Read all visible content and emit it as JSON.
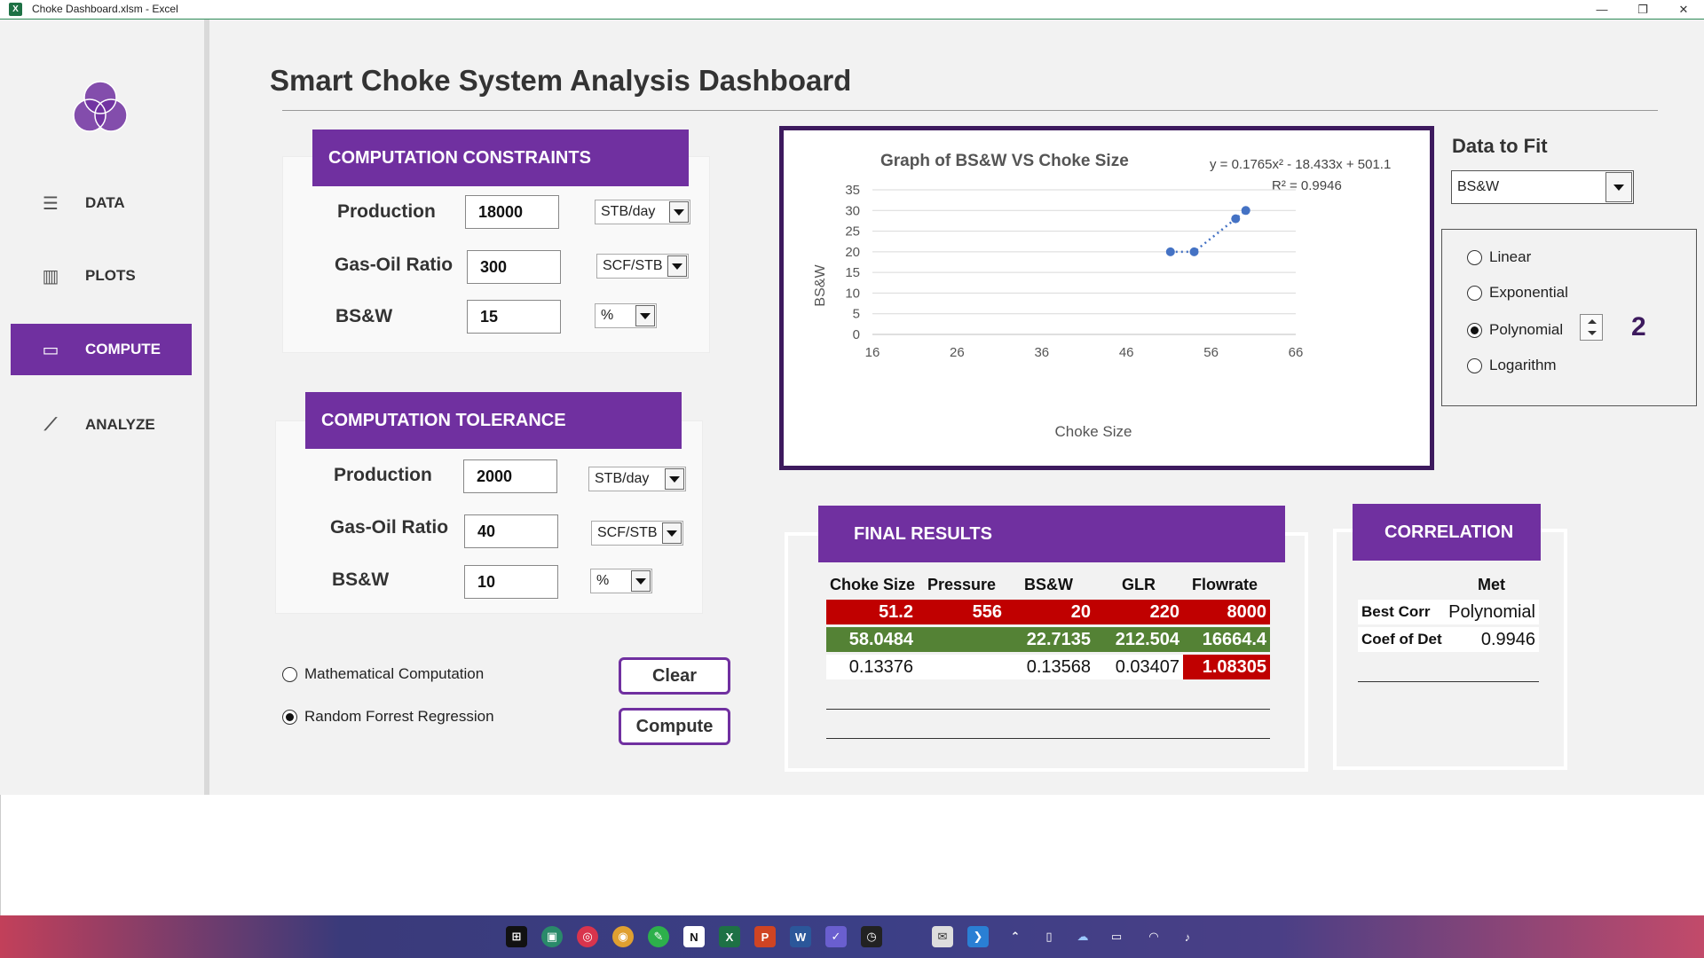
{
  "window": {
    "title": "Choke Dashboard.xlsm - Excel",
    "minimize": "—",
    "restore": "❐",
    "close": "✕"
  },
  "sidebar": {
    "items": [
      {
        "label": "DATA",
        "icon": "data-table-icon",
        "glyph": "☰"
      },
      {
        "label": "PLOTS",
        "icon": "bar-chart-icon",
        "glyph": "▥"
      },
      {
        "label": "COMPUTE",
        "icon": "compute-window-icon",
        "glyph": "▭"
      },
      {
        "label": "ANALYZE",
        "icon": "analyze-chart-icon",
        "glyph": "⟋"
      }
    ],
    "active_color": "#7030a0"
  },
  "page": {
    "title": "Smart Choke System Analysis Dashboard"
  },
  "constraints": {
    "header": "COMPUTATION CONSTRAINTS",
    "fields": [
      {
        "label": "Production",
        "value": "18000",
        "unit": "STB/day"
      },
      {
        "label": "Gas-Oil Ratio",
        "value": "300",
        "unit": "SCF/STB"
      },
      {
        "label": "BS&W",
        "value": "15",
        "unit": "%"
      }
    ]
  },
  "tolerance": {
    "header": "COMPUTATION TOLERANCE",
    "fields": [
      {
        "label": "Production",
        "value": "2000",
        "unit": "STB/day"
      },
      {
        "label": "Gas-Oil Ratio",
        "value": "40",
        "unit": "SCF/STB"
      },
      {
        "label": "BS&W",
        "value": "10",
        "unit": "%"
      }
    ]
  },
  "method": {
    "options": [
      {
        "label": "Mathematical Computation",
        "selected": false
      },
      {
        "label": "Random Forrest Regression",
        "selected": true
      }
    ]
  },
  "buttons": {
    "clear": "Clear",
    "compute": "Compute"
  },
  "chart_data": {
    "type": "scatter",
    "title": "Graph of BS&W VS  Choke Size",
    "xlabel": "Choke Size",
    "ylabel": "BS&W",
    "equation": "y = 0.1765x² - 18.433x + 501.1",
    "r_squared": "R² = 0.9946",
    "xlim": [
      16,
      66
    ],
    "ylim": [
      0,
      35
    ],
    "xticks": [
      16,
      26,
      36,
      46,
      56,
      66
    ],
    "yticks": [
      0,
      5,
      10,
      15,
      20,
      25,
      30,
      35
    ],
    "points": [
      {
        "x": 51.2,
        "y": 20
      },
      {
        "x": 54,
        "y": 20
      },
      {
        "x": 58.9,
        "y": 28
      },
      {
        "x": 60.1,
        "y": 30
      }
    ],
    "trendline": {
      "type": "polynomial",
      "coefficients": [
        0.1765,
        -18.433,
        501.1
      ]
    },
    "grid": true,
    "point_color": "#4472c4",
    "frame_color": "#3d1a5e"
  },
  "fit": {
    "label": "Data to Fit",
    "selected": "BS&W",
    "options": [
      {
        "label": "Linear",
        "selected": false
      },
      {
        "label": "Exponential",
        "selected": false
      },
      {
        "label": "Polynomial",
        "selected": true
      },
      {
        "label": "Logarithm",
        "selected": false
      }
    ],
    "degree": "2"
  },
  "results": {
    "header": "FINAL RESULTS",
    "columns": [
      "Choke Size",
      "Pressure",
      "BS&W",
      "GLR",
      "Flowrate"
    ],
    "rows": [
      [
        "51.2",
        "556",
        "20",
        "220",
        "8000"
      ],
      [
        "58.0484",
        "",
        "22.7135",
        "212.504",
        "16664.4"
      ],
      [
        "0.13376",
        "",
        "0.13568",
        "0.03407",
        "1.08305"
      ]
    ]
  },
  "correlation": {
    "header": "CORRELATION",
    "col_header": "Met",
    "rows": [
      {
        "label": "Best Corr",
        "value": "Polynomial"
      },
      {
        "label": "Coef of Det",
        "value": "0.9946"
      }
    ]
  },
  "taskbar": {
    "icons": [
      "windows-start-icon",
      "screen-icon",
      "target-icon",
      "chrome-icon",
      "evernote-icon",
      "notion-icon",
      "excel-icon",
      "powerpoint-icon",
      "word-icon",
      "checklist-icon",
      "clock-icon",
      "mail-icon",
      "vscode-icon"
    ],
    "tray": [
      "chevron-up-icon",
      "tablet-icon",
      "cloud-icon",
      "battery-icon",
      "wifi-icon",
      "volume-icon"
    ]
  }
}
